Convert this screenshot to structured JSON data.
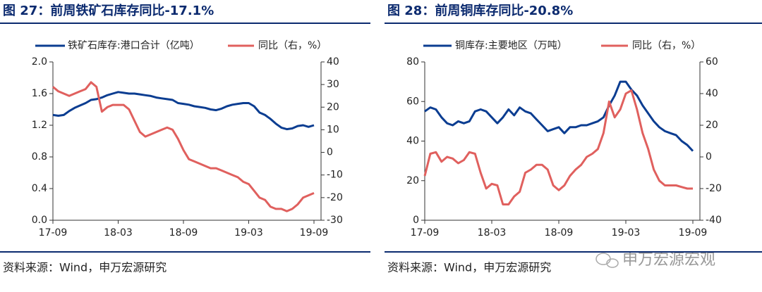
{
  "chart_data": [
    {
      "type": "line",
      "title": "图 27：前周铁矿石库存同比-17.1%",
      "source": "资料来源：Wind，申万宏源研究",
      "categories": [
        "17-09",
        null,
        null,
        null,
        null,
        null,
        null,
        null,
        null,
        null,
        null,
        null,
        "18-03",
        null,
        null,
        null,
        null,
        null,
        null,
        null,
        null,
        null,
        null,
        null,
        "18-09",
        null,
        null,
        null,
        null,
        null,
        null,
        null,
        null,
        null,
        null,
        null,
        "19-03",
        null,
        null,
        null,
        null,
        null,
        null,
        null,
        null,
        null,
        null,
        null,
        "19-09"
      ],
      "series": [
        {
          "name": "铁矿石库存:港口合计（亿吨）",
          "color": "#0b3d91",
          "values": [
            1.33,
            1.32,
            1.33,
            1.38,
            1.42,
            1.45,
            1.48,
            1.52,
            1.53,
            1.55,
            1.58,
            1.6,
            1.62,
            1.61,
            1.6,
            1.6,
            1.59,
            1.58,
            1.57,
            1.55,
            1.54,
            1.53,
            1.52,
            1.48,
            1.47,
            1.46,
            1.44,
            1.43,
            1.42,
            1.4,
            1.39,
            1.41,
            1.44,
            1.46,
            1.47,
            1.48,
            1.48,
            1.44,
            1.36,
            1.33,
            1.28,
            1.22,
            1.17,
            1.15,
            1.16,
            1.19,
            1.2,
            1.18,
            1.2
          ]
        },
        {
          "name": "同比（右，%）",
          "color": "#e0605e",
          "axis": "y2",
          "values": [
            29,
            27,
            26,
            25,
            26,
            27,
            28,
            31,
            29,
            18,
            20,
            21,
            21,
            21,
            19,
            14,
            9,
            7,
            8,
            9,
            10,
            11,
            10,
            6,
            1,
            -3,
            -4,
            -5,
            -6,
            -7,
            -7,
            -8,
            -9,
            -10,
            -11,
            -13,
            -14,
            -17,
            -20,
            -21,
            -24,
            -25,
            -25,
            -26,
            -25,
            -23,
            -20,
            -19,
            -18
          ]
        }
      ],
      "ylim": [
        0,
        2
      ],
      "yticks": [
        {
          "value": 0,
          "label": "0.0"
        },
        0.4,
        0.8,
        1.2,
        1.6,
        {
          "value": 2,
          "label": "2.0"
        }
      ],
      "y2lim": [
        -30,
        40
      ],
      "y2ticks": [
        -30,
        -20,
        -10,
        0,
        10,
        20,
        30,
        40
      ],
      "grid": false
    },
    {
      "type": "line",
      "title": "图 28：前周铜库存同比-20.8%",
      "source": "资料来源：Wind，申万宏源研究",
      "categories": [
        "17-09",
        null,
        null,
        null,
        null,
        null,
        null,
        null,
        null,
        null,
        null,
        null,
        "18-03",
        null,
        null,
        null,
        null,
        null,
        null,
        null,
        null,
        null,
        null,
        null,
        "18-09",
        null,
        null,
        null,
        null,
        null,
        null,
        null,
        null,
        null,
        null,
        null,
        "19-03",
        null,
        null,
        null,
        null,
        null,
        null,
        null,
        null,
        null,
        null,
        null,
        "19-09"
      ],
      "series": [
        {
          "name": "铜库存:主要地区（万吨）",
          "color": "#0b3d91",
          "values": [
            55,
            57,
            56,
            52,
            49,
            48,
            50,
            49,
            50,
            55,
            56,
            55,
            52,
            49,
            52,
            56,
            53,
            57,
            55,
            54,
            51,
            48,
            45,
            46,
            47,
            44,
            47,
            47,
            48,
            48,
            49,
            50,
            52,
            58,
            63,
            70,
            70,
            66,
            63,
            58,
            54,
            50,
            47,
            45,
            44,
            43,
            40,
            38,
            35
          ]
        },
        {
          "name": "同比（右，%）",
          "color": "#e0605e",
          "axis": "y2",
          "values": [
            -12,
            2,
            3,
            -3,
            0,
            -1,
            -4,
            -2,
            3,
            2,
            -10,
            -20,
            -17,
            -18,
            -30,
            -30,
            -25,
            -22,
            -10,
            -8,
            -5,
            -5,
            -8,
            -18,
            -21,
            -18,
            -12,
            -8,
            -5,
            0,
            2,
            5,
            15,
            35,
            25,
            30,
            40,
            42,
            30,
            15,
            5,
            -8,
            -15,
            -18,
            -18,
            -18,
            -19,
            -20,
            -20
          ]
        }
      ],
      "ylim": [
        0,
        80
      ],
      "yticks": [
        0,
        20,
        40,
        60,
        80
      ],
      "y2lim": [
        -40,
        60
      ],
      "y2ticks": [
        -40,
        -20,
        0,
        20,
        40,
        60
      ],
      "grid": false
    }
  ],
  "watermark": "申万宏源宏观"
}
